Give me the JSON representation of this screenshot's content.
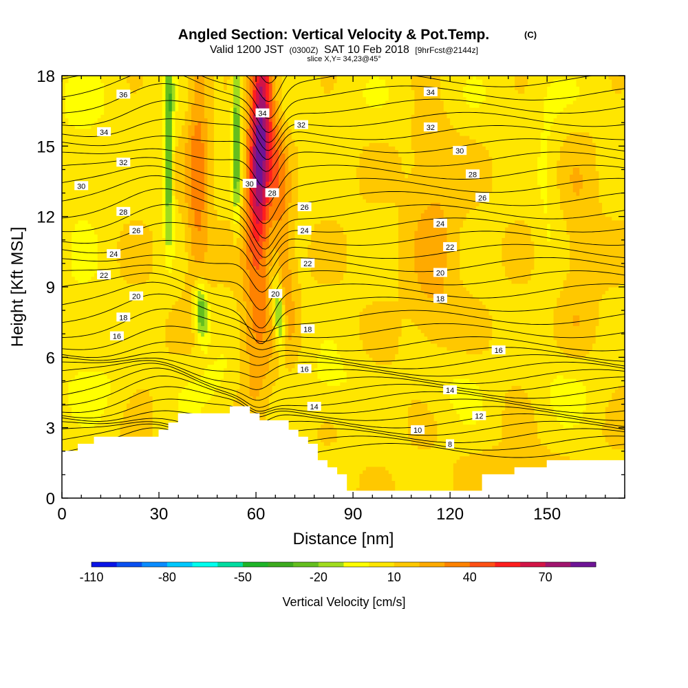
{
  "title": {
    "main": "Angled Section: Vertical Velocity & Pot.Temp.",
    "main_unit": "(C)",
    "valid_a": "Valid 1200 JST",
    "valid_b": "(0300Z)",
    "valid_c": "SAT 10 Feb 2018",
    "valid_d": "[9hrFcst@2144z]",
    "slice": "slice X,Y= 34,23@45°"
  },
  "chart_data": {
    "type": "heatmap",
    "xlabel": "Distance [nm]",
    "ylabel": "Height [Kft MSL]",
    "xlim": [
      0,
      174
    ],
    "ylim": [
      0,
      18
    ],
    "x_ticks": [
      0,
      30,
      60,
      90,
      120,
      150
    ],
    "y_ticks": [
      0,
      3,
      6,
      9,
      12,
      15,
      18
    ],
    "colorbar": {
      "label": "Vertical Velocity [cm/s]",
      "tick_values": [
        -110,
        -80,
        -50,
        -20,
        10,
        40,
        70
      ],
      "tick_labels": [
        "-110",
        "-80",
        "-50",
        "-20",
        "10",
        "40",
        "70"
      ],
      "bins": [
        -110,
        -100,
        -90,
        -80,
        -70,
        -60,
        -50,
        -40,
        -30,
        -20,
        -10,
        0,
        10,
        20,
        30,
        40,
        50,
        60,
        70,
        80
      ],
      "colors": [
        "#0a14e6",
        "#0a50f0",
        "#0a8cff",
        "#00c8ff",
        "#00ffee",
        "#00dca0",
        "#1eb428",
        "#3caa1e",
        "#64be1e",
        "#a0dc1e",
        "#ffff00",
        "#ffe600",
        "#ffc800",
        "#ffaa00",
        "#ff8200",
        "#ff5014",
        "#ff1e1e",
        "#d21446",
        "#a0146e",
        "#6e1496"
      ]
    },
    "terrain_top_kft": [
      [
        0,
        2.0
      ],
      [
        5,
        2.0
      ],
      [
        5,
        2.3
      ],
      [
        10,
        2.3
      ],
      [
        10,
        2.6
      ],
      [
        30,
        2.6
      ],
      [
        30,
        2.9
      ],
      [
        33,
        2.9
      ],
      [
        33,
        3.2
      ],
      [
        36,
        3.2
      ],
      [
        36,
        3.6
      ],
      [
        52,
        3.6
      ],
      [
        52,
        3.9
      ],
      [
        58,
        3.9
      ],
      [
        58,
        3.6
      ],
      [
        61,
        3.6
      ],
      [
        61,
        3.3
      ],
      [
        70,
        3.3
      ],
      [
        70,
        2.9
      ],
      [
        73,
        2.9
      ],
      [
        73,
        2.6
      ],
      [
        76,
        2.6
      ],
      [
        76,
        2.3
      ],
      [
        79,
        2.3
      ],
      [
        79,
        1.6
      ],
      [
        82,
        1.6
      ],
      [
        82,
        1.3
      ],
      [
        85,
        1.3
      ],
      [
        85,
        1.0
      ],
      [
        88,
        1.0
      ],
      [
        88,
        0.3
      ],
      [
        130,
        0.3
      ],
      [
        130,
        1.0
      ],
      [
        140,
        1.0
      ],
      [
        140,
        1.3
      ],
      [
        150,
        1.3
      ],
      [
        150,
        1.6
      ],
      [
        174,
        1.6
      ]
    ],
    "velocity_features": [
      {
        "kind": "updraft",
        "x_nm": 60,
        "z_kft": [
          2,
          18
        ],
        "peak_cm_s": 75
      },
      {
        "kind": "updraft",
        "x_nm": 42,
        "z_kft": [
          9,
          18
        ],
        "peak_cm_s": 40
      },
      {
        "kind": "updraft",
        "x_nm": 69,
        "z_kft": [
          7,
          16
        ],
        "peak_cm_s": 30
      },
      {
        "kind": "downdraft",
        "x_nm": 33,
        "z_kft": [
          11,
          18
        ],
        "peak_cm_s": -30
      },
      {
        "kind": "downdraft",
        "x_nm": 54,
        "z_kft": [
          12,
          18
        ],
        "peak_cm_s": -25
      },
      {
        "kind": "downdraft",
        "x_nm": 43,
        "z_kft": [
          7,
          9
        ],
        "peak_cm_s": -35
      },
      {
        "kind": "downdraft",
        "x_nm": 66,
        "z_kft": [
          6.3,
          9
        ],
        "peak_cm_s": -35
      }
    ],
    "contour_labels": [
      {
        "text": "36",
        "x": 19,
        "y": 17.2
      },
      {
        "text": "34",
        "x": 13,
        "y": 15.6
      },
      {
        "text": "32",
        "x": 19,
        "y": 14.3
      },
      {
        "text": "30",
        "x": 6,
        "y": 13.3
      },
      {
        "text": "28",
        "x": 19,
        "y": 12.2
      },
      {
        "text": "26",
        "x": 23,
        "y": 11.4
      },
      {
        "text": "24",
        "x": 16,
        "y": 10.4
      },
      {
        "text": "22",
        "x": 13,
        "y": 9.5
      },
      {
        "text": "20",
        "x": 23,
        "y": 8.6
      },
      {
        "text": "18",
        "x": 19,
        "y": 7.7
      },
      {
        "text": "16",
        "x": 17,
        "y": 6.9
      },
      {
        "text": "34",
        "x": 62,
        "y": 16.4
      },
      {
        "text": "32",
        "x": 74,
        "y": 15.9
      },
      {
        "text": "30",
        "x": 58,
        "y": 13.4
      },
      {
        "text": "28",
        "x": 65,
        "y": 13.0
      },
      {
        "text": "26",
        "x": 75,
        "y": 12.4
      },
      {
        "text": "24",
        "x": 75,
        "y": 11.4
      },
      {
        "text": "22",
        "x": 76,
        "y": 10.0
      },
      {
        "text": "20",
        "x": 66,
        "y": 8.7
      },
      {
        "text": "18",
        "x": 76,
        "y": 7.2
      },
      {
        "text": "16",
        "x": 75,
        "y": 5.5
      },
      {
        "text": "14",
        "x": 78,
        "y": 3.9
      },
      {
        "text": "34",
        "x": 114,
        "y": 17.3
      },
      {
        "text": "32",
        "x": 114,
        "y": 15.8
      },
      {
        "text": "30",
        "x": 123,
        "y": 14.8
      },
      {
        "text": "28",
        "x": 127,
        "y": 13.8
      },
      {
        "text": "26",
        "x": 130,
        "y": 12.8
      },
      {
        "text": "24",
        "x": 117,
        "y": 11.7
      },
      {
        "text": "22",
        "x": 120,
        "y": 10.7
      },
      {
        "text": "20",
        "x": 117,
        "y": 9.6
      },
      {
        "text": "18",
        "x": 117,
        "y": 8.5
      },
      {
        "text": "16",
        "x": 135,
        "y": 6.3
      },
      {
        "text": "14",
        "x": 120,
        "y": 4.6
      },
      {
        "text": "12",
        "x": 129,
        "y": 3.5
      },
      {
        "text": "10",
        "x": 110,
        "y": 2.9
      },
      {
        "text": "8",
        "x": 120,
        "y": 2.3
      }
    ]
  }
}
